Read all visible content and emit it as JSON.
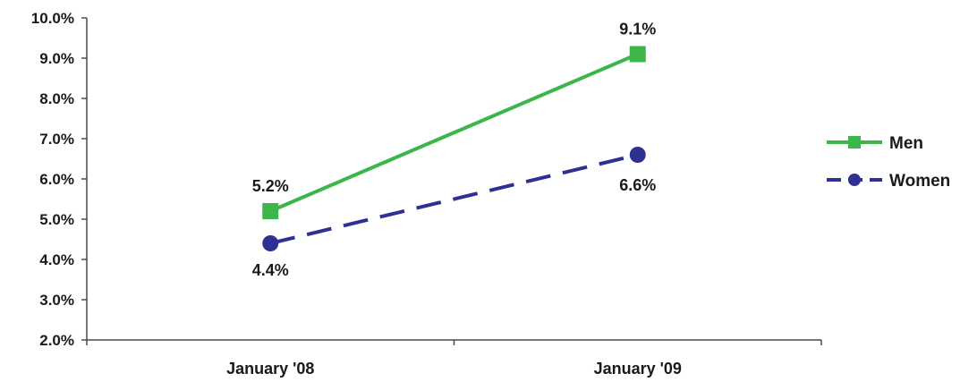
{
  "chart_data": {
    "type": "line",
    "title": "",
    "xlabel": "",
    "ylabel": "",
    "categories": [
      "January '08",
      "January '09"
    ],
    "y_ticks": [
      "2.0%",
      "3.0%",
      "4.0%",
      "5.0%",
      "6.0%",
      "7.0%",
      "8.0%",
      "9.0%",
      "10.0%"
    ],
    "ylim": [
      2.0,
      10.0
    ],
    "grid": false,
    "legend_position": "right",
    "series": [
      {
        "name": "Men",
        "values": [
          5.2,
          9.1
        ],
        "labels": [
          "5.2%",
          "9.1%"
        ],
        "color": "#3cb54a",
        "line_style": "solid",
        "marker": "square"
      },
      {
        "name": "Women",
        "values": [
          4.4,
          6.6
        ],
        "labels": [
          "4.4%",
          "6.6%"
        ],
        "color": "#2e3192",
        "line_style": "dashed",
        "marker": "circle"
      }
    ]
  }
}
